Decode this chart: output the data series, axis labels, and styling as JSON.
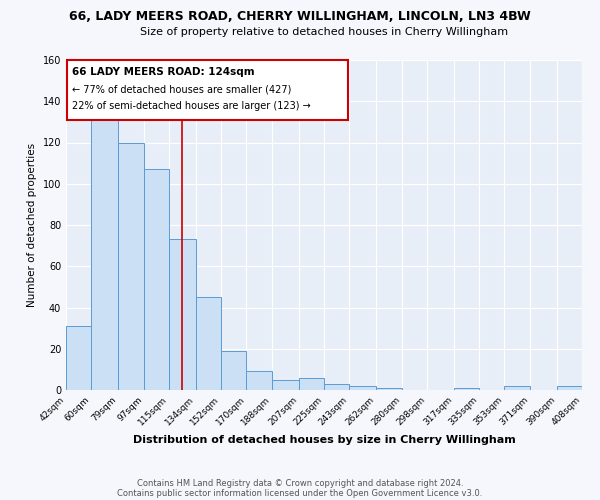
{
  "title1": "66, LADY MEERS ROAD, CHERRY WILLINGHAM, LINCOLN, LN3 4BW",
  "title2": "Size of property relative to detached houses in Cherry Willingham",
  "xlabel": "Distribution of detached houses by size in Cherry Willingham",
  "ylabel": "Number of detached properties",
  "bin_labels": [
    "42sqm",
    "60sqm",
    "79sqm",
    "97sqm",
    "115sqm",
    "134sqm",
    "152sqm",
    "170sqm",
    "188sqm",
    "207sqm",
    "225sqm",
    "243sqm",
    "262sqm",
    "280sqm",
    "298sqm",
    "317sqm",
    "335sqm",
    "353sqm",
    "371sqm",
    "390sqm",
    "408sqm"
  ],
  "bar_values": [
    31,
    133,
    120,
    107,
    73,
    45,
    19,
    9,
    5,
    6,
    3,
    2,
    1,
    0,
    0,
    1,
    0,
    2,
    0,
    2
  ],
  "bin_edges": [
    42,
    60,
    79,
    97,
    115,
    134,
    152,
    170,
    188,
    207,
    225,
    243,
    262,
    280,
    298,
    317,
    335,
    353,
    371,
    390,
    408
  ],
  "bar_fill_color": "#cce0f5",
  "bar_edge_color": "#5b9bd5",
  "bg_color": "#e8eef7",
  "grid_color": "#ffffff",
  "red_line_x": 124,
  "ylim": [
    0,
    160
  ],
  "yticks": [
    0,
    20,
    40,
    60,
    80,
    100,
    120,
    140,
    160
  ],
  "annotation_title": "66 LADY MEERS ROAD: 124sqm",
  "annotation_line1": "← 77% of detached houses are smaller (427)",
  "annotation_line2": "22% of semi-detached houses are larger (123) →",
  "annotation_box_color": "#ffffff",
  "annotation_box_edge": "#cc0000",
  "footer1": "Contains HM Land Registry data © Crown copyright and database right 2024.",
  "footer2": "Contains public sector information licensed under the Open Government Licence v3.0.",
  "fig_bg": "#f5f7fc"
}
